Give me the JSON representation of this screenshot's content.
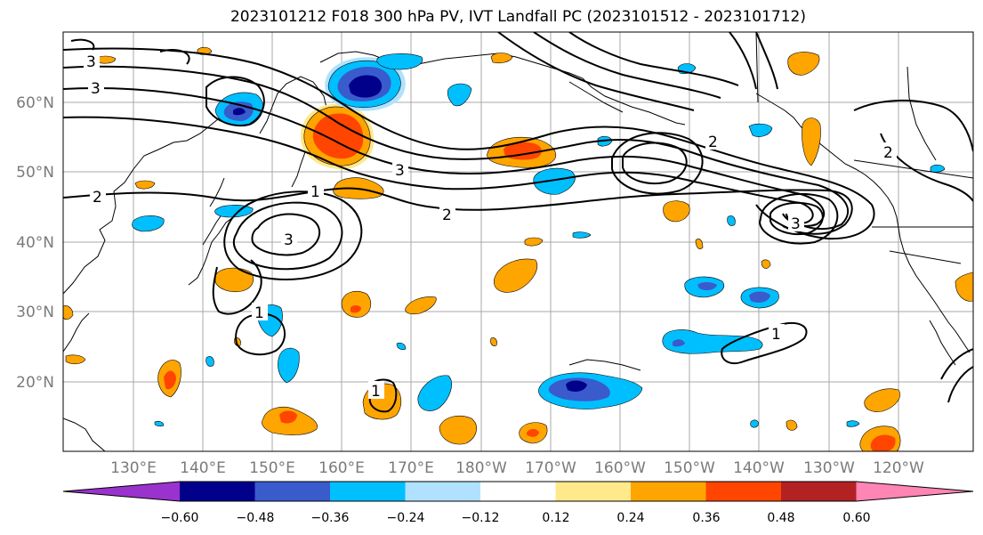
{
  "title": "2023101212 F018 300 hPa PV, IVT Landfall PC (2023101512 - 2023101712)",
  "map": {
    "lat_labels": [
      "60°N",
      "50°N",
      "40°N",
      "30°N",
      "20°N"
    ],
    "lon_labels": [
      "130°E",
      "140°E",
      "150°E",
      "160°E",
      "170°E",
      "180°W",
      "170°W",
      "160°W",
      "150°W",
      "140°W",
      "130°W",
      "120°W"
    ],
    "contour_labels": [
      "3",
      "2",
      "1",
      "2",
      "3",
      "2",
      "1",
      "1",
      "1",
      "2",
      "3",
      "3",
      "3"
    ]
  },
  "colorbar": {
    "ticks": [
      "−0.60",
      "−0.48",
      "−0.36",
      "−0.24",
      "−0.12",
      "0.12",
      "0.24",
      "0.36",
      "0.48",
      "0.60"
    ],
    "colors": [
      "#9a32cd",
      "#00008b",
      "#3a5bcc",
      "#00bfff",
      "#b0e2ff",
      "#ffffff",
      "#ffe98a",
      "#ffa500",
      "#ff4500",
      "#b22222",
      "#ff85b4"
    ]
  }
}
